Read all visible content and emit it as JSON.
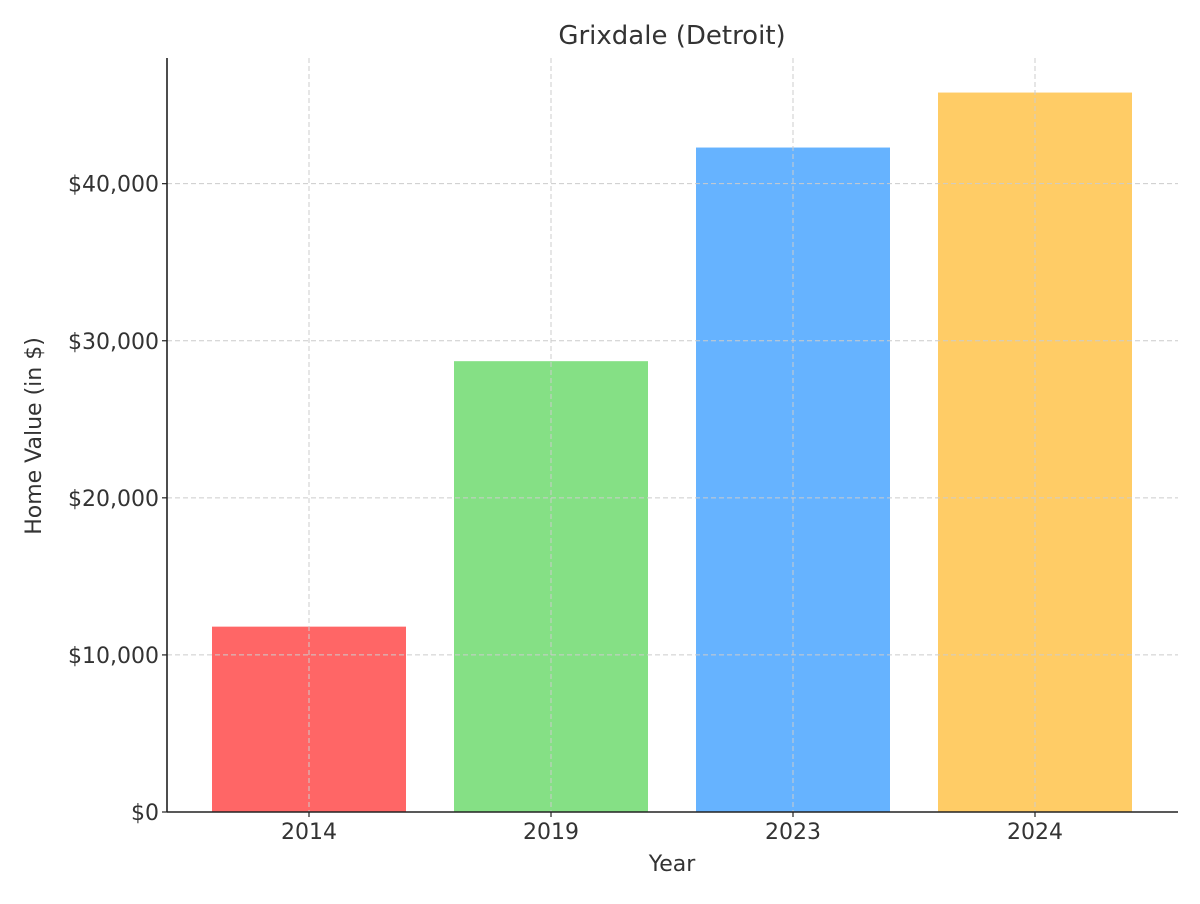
{
  "chart_data": {
    "type": "bar",
    "title": "Grixdale (Detroit)",
    "xlabel": "Year",
    "ylabel": "Home Value (in $)",
    "categories": [
      "2014",
      "2019",
      "2023",
      "2024"
    ],
    "values": [
      11800,
      28700,
      42300,
      45800
    ],
    "colors": [
      "#ff6666",
      "#85e085",
      "#66b3ff",
      "#ffcc66"
    ],
    "ylim": [
      0,
      48000
    ],
    "yticks": [
      0,
      10000,
      20000,
      30000,
      40000
    ],
    "ytick_labels": [
      "$0",
      "$10,000",
      "$20,000",
      "$30,000",
      "$40,000"
    ],
    "grid": true,
    "legend": "none"
  }
}
